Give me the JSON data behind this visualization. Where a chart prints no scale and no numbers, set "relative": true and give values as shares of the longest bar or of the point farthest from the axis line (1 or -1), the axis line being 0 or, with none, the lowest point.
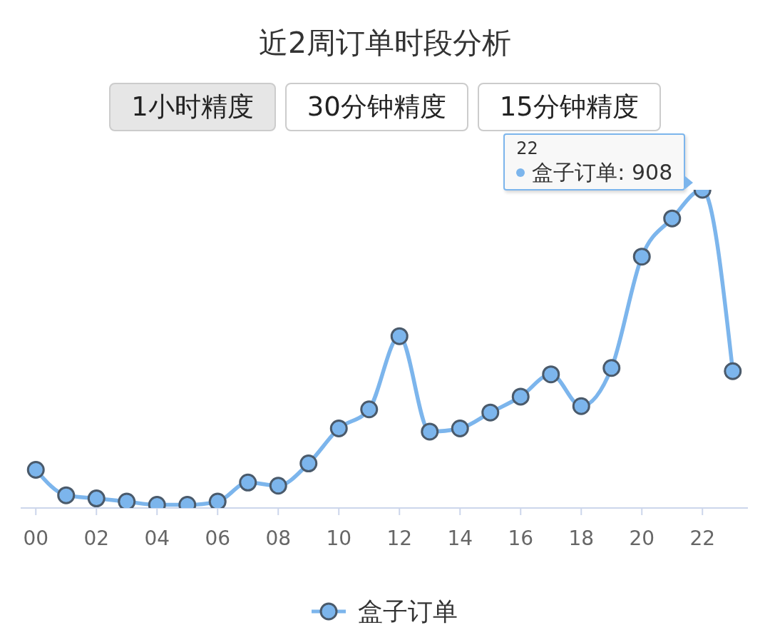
{
  "chart_data": {
    "type": "line",
    "title": "近2周订单时段分析",
    "annotations": [
      "1小时精度",
      "30分钟精度",
      "15分钟精度",
      {
        "text": "22\n盒子订单: 908",
        "x": "22",
        "y": 1
      }
    ],
    "categories": [
      "00",
      null,
      "02",
      null,
      "04",
      null,
      "06",
      null,
      "08",
      null,
      "10",
      null,
      "12",
      null,
      "14",
      null,
      "16",
      null,
      "18",
      null,
      "20",
      null,
      "22",
      null
    ],
    "series": [
      {
        "name": "盒子订单",
        "color": "#7cb5ec",
        "values": [
          0.12,
          0.04,
          0.03,
          0.02,
          0.01,
          0.01,
          0.02,
          0.08,
          0.07,
          0.14,
          0.25,
          0.31,
          0.54,
          0.24,
          0.25,
          0.3,
          0.35,
          0.42,
          0.32,
          0.44,
          0.79,
          0.91,
          1,
          0.43
        ]
      }
    ],
    "relative": true,
    "legend": "bottom",
    "marker": "circle",
    "line_style": "solid"
  }
}
